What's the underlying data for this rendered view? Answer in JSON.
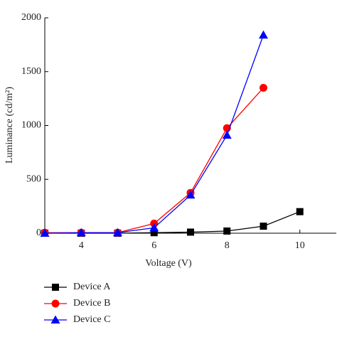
{
  "chart_data": {
    "type": "line",
    "x_label": "Voltage (V)",
    "y_label": "Luminance (cd/m²)",
    "x": [
      3,
      4,
      5,
      6,
      7,
      8,
      9,
      10
    ],
    "series": [
      {
        "name": "Device A",
        "color": "#000000",
        "marker": "square",
        "values": [
          0,
          0,
          0,
          5,
          10,
          20,
          65,
          200
        ]
      },
      {
        "name": "Device B",
        "color": "#ff0000",
        "marker": "circle",
        "values": [
          5,
          5,
          5,
          90,
          375,
          975,
          1350,
          null
        ]
      },
      {
        "name": "Device C",
        "color": "#0000ff",
        "marker": "triangle",
        "values": [
          0,
          5,
          5,
          50,
          355,
          910,
          1840,
          null
        ]
      }
    ],
    "xlim": [
      3,
      11
    ],
    "xticks": [
      4,
      6,
      8,
      10
    ],
    "ylim": [
      0,
      2000
    ],
    "yticks": [
      0,
      500,
      1000,
      1500,
      2000
    ],
    "legend": "bottom-left"
  }
}
